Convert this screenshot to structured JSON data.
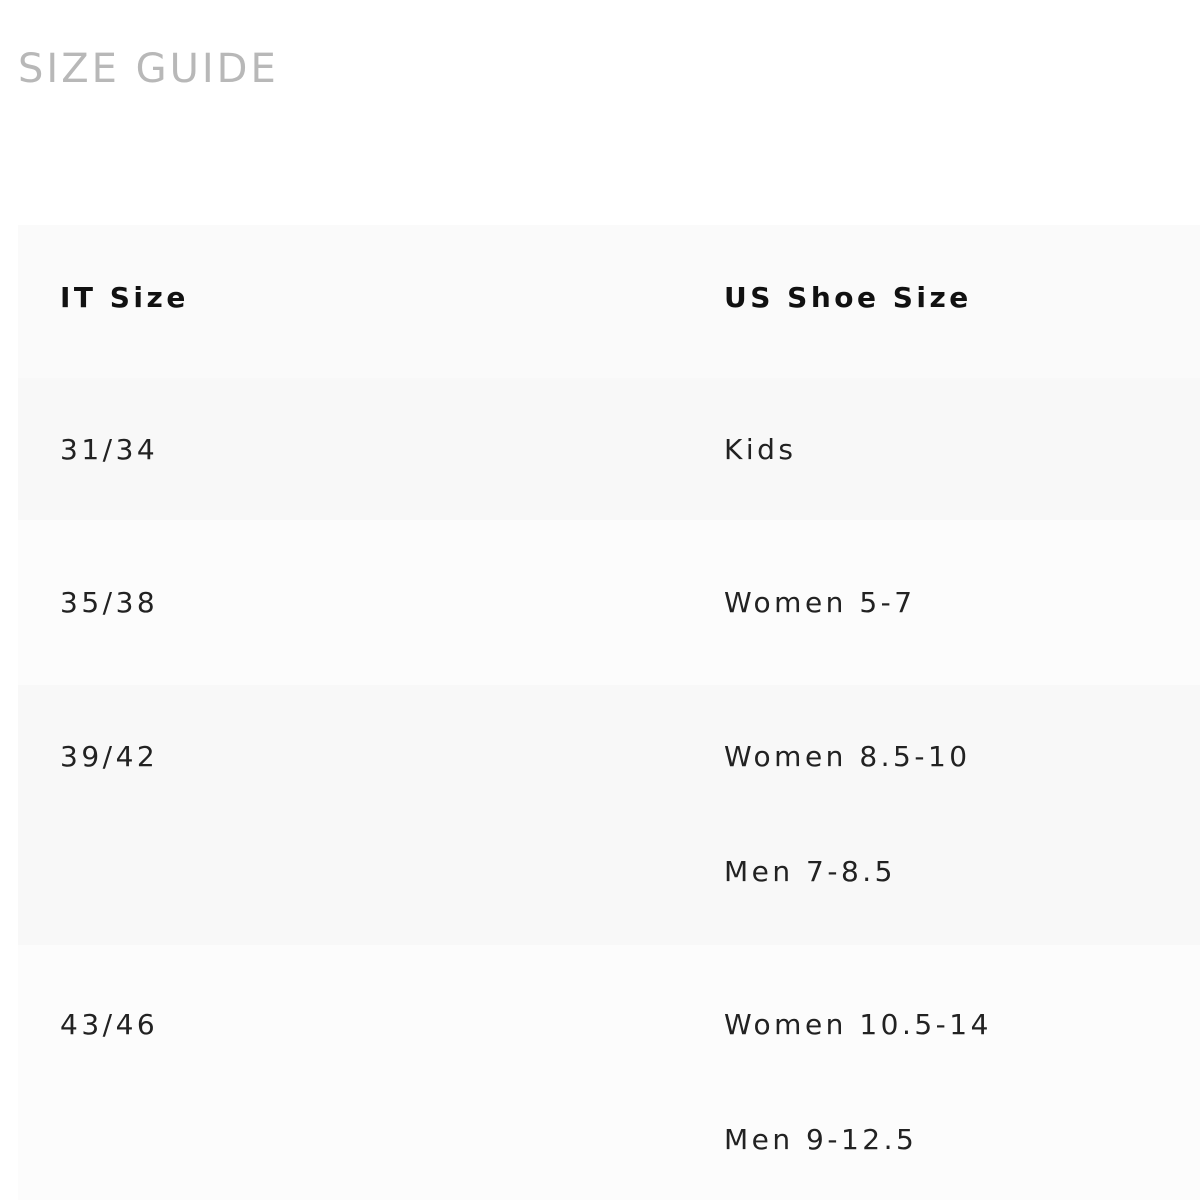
{
  "title": "SIZE GUIDE",
  "table": {
    "headers": [
      "IT Size",
      "US Shoe Size"
    ],
    "rows": [
      {
        "it": "31/34",
        "us": [
          "Kids"
        ]
      },
      {
        "it": "35/38",
        "us": [
          "Women 5-7"
        ]
      },
      {
        "it": "39/42",
        "us": [
          "Women 8.5-10",
          "Men 7-8.5"
        ]
      },
      {
        "it": "43/46",
        "us": [
          "Women 10.5-14",
          "Men 9-12.5"
        ]
      }
    ]
  }
}
